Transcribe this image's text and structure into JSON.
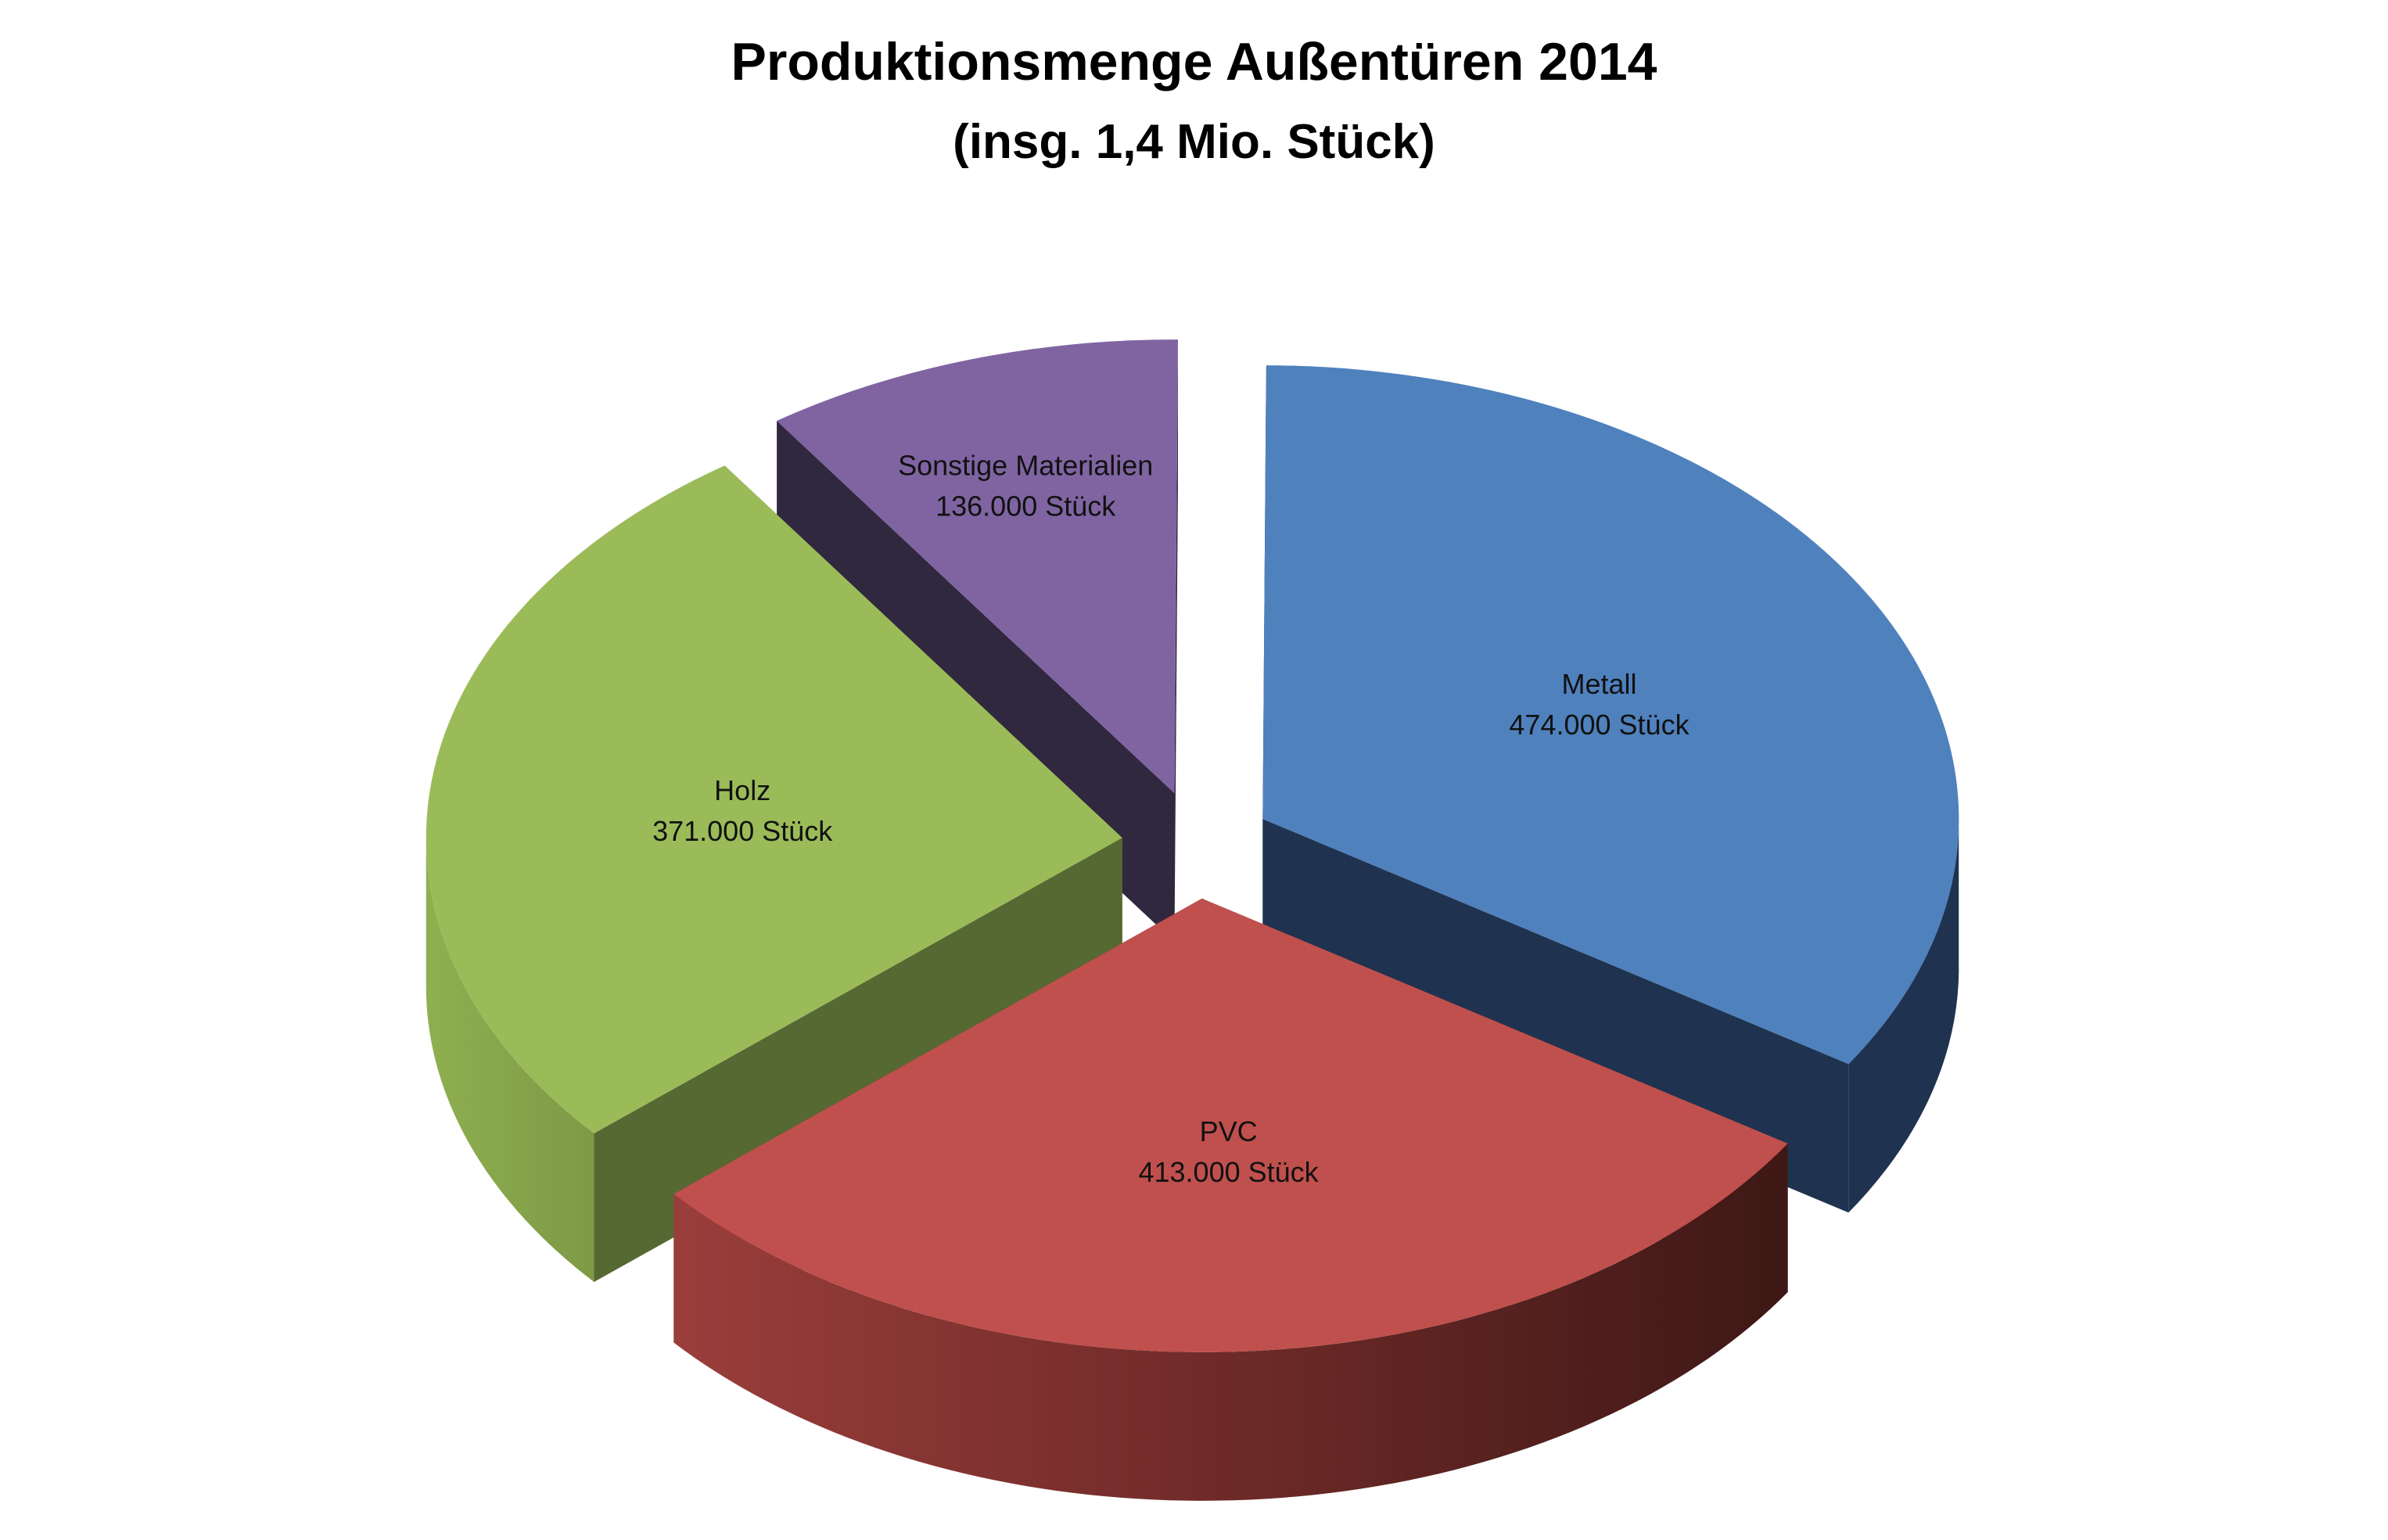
{
  "chart_data": {
    "type": "pie",
    "style": "3d-exploded",
    "title": "Produktionsmenge Außentüren 2014",
    "subtitle": "(insg. 1,4 Mio. Stück)",
    "unit": "Stück",
    "slices": [
      {
        "key": "metall",
        "label": "Metall",
        "value": 474000,
        "value_label": "474.000 Stück",
        "color": "#4F81BD",
        "side_color": "#1F3350"
      },
      {
        "key": "pvc",
        "label": "PVC",
        "value": 413000,
        "value_label": "413.000 Stück",
        "color": "#C0504D",
        "side_color": "#5E2221"
      },
      {
        "key": "holz",
        "label": "Holz",
        "value": 371000,
        "value_label": "371.000 Stück",
        "color": "#9BBB59",
        "side_color": "#566932"
      },
      {
        "key": "sonstige",
        "label": "Sonstige Materialien",
        "value": 136000,
        "value_label": "136.000 Stück",
        "color": "#8064A2",
        "side_color": "#30283F"
      }
    ],
    "legend": "none"
  }
}
